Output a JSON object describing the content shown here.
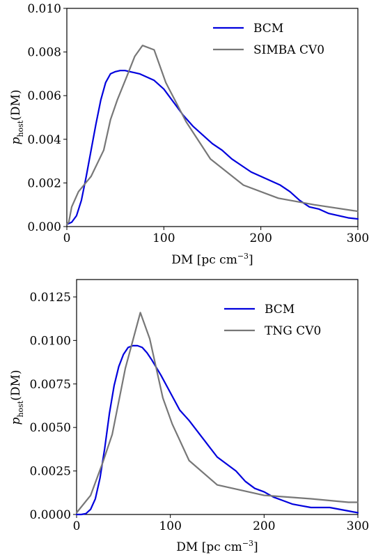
{
  "chart_data": [
    {
      "type": "line",
      "xlabel_main": "DM [pc cm",
      "xlabel_sup": "−3",
      "xlabel_tail": "]",
      "ylabel_main": "p",
      "ylabel_sub": "host",
      "ylabel_tail": "(DM)",
      "xlim": [
        0,
        300
      ],
      "ylim": [
        0,
        0.01
      ],
      "xticks": [
        0,
        100,
        200,
        300
      ],
      "xtick_labels": [
        "0",
        "100",
        "200",
        "300"
      ],
      "yticks": [
        0,
        0.002,
        0.004,
        0.006,
        0.008,
        0.01
      ],
      "ytick_labels": [
        "0.000",
        "0.002",
        "0.004",
        "0.006",
        "0.008",
        "0.010"
      ],
      "grid": false,
      "legend_position": "top-right",
      "series": [
        {
          "name": "BCM",
          "color": "#0000dd",
          "x": [
            0,
            5,
            10,
            15,
            20,
            25,
            30,
            35,
            40,
            45,
            50,
            55,
            60,
            65,
            70,
            75,
            80,
            90,
            100,
            110,
            120,
            130,
            140,
            150,
            160,
            170,
            180,
            190,
            200,
            210,
            220,
            230,
            240,
            250,
            260,
            270,
            280,
            290,
            300
          ],
          "y": [
            0.0001,
            0.0002,
            0.0005,
            0.0012,
            0.0023,
            0.0035,
            0.0047,
            0.0058,
            0.0066,
            0.007,
            0.0071,
            0.00715,
            0.00715,
            0.0071,
            0.00705,
            0.007,
            0.0069,
            0.0067,
            0.0063,
            0.0057,
            0.0051,
            0.0046,
            0.0042,
            0.0038,
            0.0035,
            0.0031,
            0.0028,
            0.0025,
            0.0023,
            0.0021,
            0.0019,
            0.0016,
            0.0012,
            0.0009,
            0.0008,
            0.0006,
            0.0005,
            0.0004,
            0.00035
          ]
        },
        {
          "name": "SIMBA CV0",
          "color": "#777777",
          "x": [
            0,
            2,
            5,
            12,
            25,
            38,
            45,
            52,
            62,
            70,
            78,
            90,
            102,
            123,
            148,
            182,
            218,
            255,
            300
          ],
          "y": [
            0.0001,
            0.0002,
            0.0009,
            0.0016,
            0.0023,
            0.0035,
            0.0049,
            0.0058,
            0.0069,
            0.0078,
            0.0083,
            0.0081,
            0.0066,
            0.0048,
            0.0031,
            0.0019,
            0.0013,
            0.001,
            0.0007
          ]
        }
      ]
    },
    {
      "type": "line",
      "xlabel_main": "DM [pc cm",
      "xlabel_sup": "−3",
      "xlabel_tail": "]",
      "ylabel_main": "p",
      "ylabel_sub": "host",
      "ylabel_tail": "(DM)",
      "xlim": [
        0,
        300
      ],
      "ylim": [
        0,
        0.0135
      ],
      "xticks": [
        0,
        100,
        200,
        300
      ],
      "xtick_labels": [
        "0",
        "100",
        "200",
        "300"
      ],
      "yticks": [
        0,
        0.0025,
        0.005,
        0.0075,
        0.01,
        0.0125
      ],
      "ytick_labels": [
        "0.0000",
        "0.0025",
        "0.0050",
        "0.0075",
        "0.0100",
        "0.0125"
      ],
      "grid": false,
      "legend_position": "top-right",
      "series": [
        {
          "name": "BCM",
          "color": "#0000dd",
          "x": [
            0,
            5,
            10,
            15,
            20,
            25,
            30,
            35,
            40,
            45,
            50,
            55,
            60,
            65,
            70,
            75,
            80,
            90,
            100,
            110,
            120,
            130,
            140,
            150,
            160,
            170,
            180,
            190,
            200,
            210,
            220,
            230,
            240,
            250,
            260,
            270,
            280,
            290,
            300
          ],
          "y": [
            0,
            0,
            5e-05,
            0.0003,
            0.0009,
            0.0021,
            0.0038,
            0.0058,
            0.0074,
            0.0085,
            0.0092,
            0.0096,
            0.0097,
            0.0097,
            0.0096,
            0.0093,
            0.0089,
            0.008,
            0.007,
            0.006,
            0.0054,
            0.0047,
            0.004,
            0.0033,
            0.0029,
            0.0025,
            0.0019,
            0.0015,
            0.0013,
            0.001,
            0.0008,
            0.0006,
            0.0005,
            0.0004,
            0.0004,
            0.0004,
            0.0003,
            0.0002,
            0.0001
          ]
        },
        {
          "name": "TNG CV0",
          "color": "#777777",
          "x": [
            0,
            15,
            28,
            38,
            52,
            68,
            78,
            92,
            102,
            120,
            150,
            200,
            250,
            290,
            300
          ],
          "y": [
            0.0001,
            0.0011,
            0.003,
            0.0046,
            0.0084,
            0.0116,
            0.0101,
            0.0067,
            0.0052,
            0.0031,
            0.0017,
            0.0011,
            0.0009,
            0.0007,
            0.0007
          ]
        }
      ]
    }
  ]
}
